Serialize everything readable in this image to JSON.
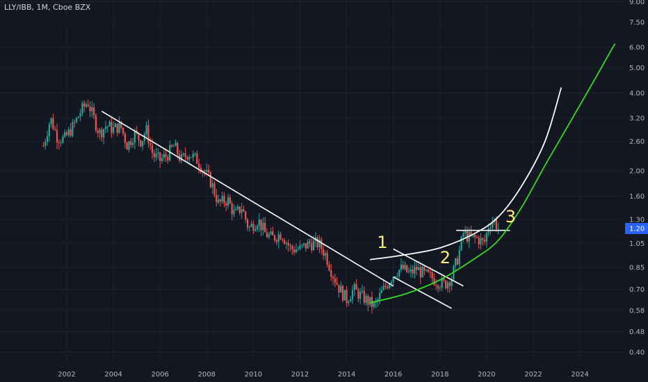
{
  "header": {
    "title": "LLY/IBB, 1M, Cboe BZX"
  },
  "colors": {
    "background": "#131722",
    "grid": "#1e222d",
    "up": "#26a69a",
    "down": "#ef5350",
    "trendline": "#ffffff",
    "green_curve": "#33dd22",
    "label": "#fff176",
    "badge": "#2962ff"
  },
  "chart_data": {
    "type": "candlestick",
    "title": "LLY/IBB, 1M, Cboe BZX",
    "y_scale": "log",
    "x_range": [
      2001.0,
      2026.0
    ],
    "y_range": [
      0.37,
      9.0
    ],
    "x_ticks": [
      "2002",
      "2004",
      "2006",
      "2008",
      "2010",
      "2012",
      "2014",
      "2016",
      "2018",
      "2020",
      "2022",
      "2024"
    ],
    "y_ticks": [
      "9.00",
      "7.50",
      "6.00",
      "5.00",
      "4.00",
      "3.20",
      "2.60",
      "2.00",
      "1.60",
      "1.30",
      "1.05",
      "0.85",
      "0.70",
      "0.58",
      "0.48",
      "0.40"
    ],
    "current_price": "1.20",
    "price_path": [
      [
        2001.0,
        2.5
      ],
      [
        2001.3,
        3.2
      ],
      [
        2001.6,
        2.7
      ],
      [
        2001.9,
        2.65
      ],
      [
        2002.3,
        3.0
      ],
      [
        2002.6,
        3.4
      ],
      [
        2002.9,
        3.7
      ],
      [
        2003.1,
        3.3
      ],
      [
        2003.4,
        2.8
      ],
      [
        2003.7,
        3.0
      ],
      [
        2004.0,
        2.9
      ],
      [
        2004.3,
        3.0
      ],
      [
        2004.6,
        2.5
      ],
      [
        2004.9,
        2.8
      ],
      [
        2005.2,
        2.6
      ],
      [
        2005.4,
        2.9
      ],
      [
        2005.7,
        2.3
      ],
      [
        2006.0,
        2.2
      ],
      [
        2006.3,
        2.3
      ],
      [
        2006.6,
        2.5
      ],
      [
        2006.9,
        2.2
      ],
      [
        2007.2,
        2.35
      ],
      [
        2007.6,
        2.2
      ],
      [
        2007.9,
        2.0
      ],
      [
        2008.2,
        1.8
      ],
      [
        2008.5,
        1.5
      ],
      [
        2008.9,
        1.55
      ],
      [
        2009.2,
        1.35
      ],
      [
        2009.5,
        1.45
      ],
      [
        2009.8,
        1.2
      ],
      [
        2010.2,
        1.3
      ],
      [
        2010.5,
        1.15
      ],
      [
        2010.8,
        1.1
      ],
      [
        2011.2,
        1.15
      ],
      [
        2011.6,
        1.0
      ],
      [
        2012.0,
        1.0
      ],
      [
        2012.4,
        1.05
      ],
      [
        2012.8,
        1.05
      ],
      [
        2013.1,
        0.95
      ],
      [
        2013.4,
        0.8
      ],
      [
        2013.7,
        0.7
      ],
      [
        2014.0,
        0.64
      ],
      [
        2014.3,
        0.7
      ],
      [
        2014.6,
        0.66
      ],
      [
        2014.9,
        0.63
      ],
      [
        2015.2,
        0.6
      ],
      [
        2015.5,
        0.68
      ],
      [
        2015.8,
        0.75
      ],
      [
        2016.1,
        0.82
      ],
      [
        2016.4,
        0.84
      ],
      [
        2016.7,
        0.8
      ],
      [
        2017.0,
        0.84
      ],
      [
        2017.3,
        0.8
      ],
      [
        2017.6,
        0.78
      ],
      [
        2017.9,
        0.75
      ],
      [
        2018.2,
        0.73
      ],
      [
        2018.5,
        0.78
      ],
      [
        2018.8,
        0.95
      ],
      [
        2019.0,
        1.15
      ],
      [
        2019.3,
        1.1
      ],
      [
        2019.6,
        1.1
      ],
      [
        2019.9,
        1.05
      ],
      [
        2020.1,
        1.25
      ],
      [
        2020.3,
        1.3
      ],
      [
        2020.5,
        1.2
      ]
    ],
    "annotations": [
      {
        "text": "1",
        "x": 2015.3,
        "y": 1.01
      },
      {
        "text": "2",
        "x": 2018.0,
        "y": 0.88
      },
      {
        "text": "3",
        "x": 2020.8,
        "y": 1.27
      }
    ],
    "lines": [
      {
        "name": "long-downtrend",
        "points": [
          [
            2003.5,
            3.4
          ],
          [
            2016.0,
            0.72
          ]
        ]
      },
      {
        "name": "channel-line",
        "points": [
          [
            2016.0,
            1.0
          ],
          [
            2019.0,
            0.72
          ]
        ]
      },
      {
        "name": "channel-lower-line",
        "points": [
          [
            2016.0,
            0.78
          ],
          [
            2018.5,
            0.59
          ]
        ]
      },
      {
        "name": "breakout-level",
        "points": [
          [
            2018.7,
            1.18
          ],
          [
            2021.0,
            1.18
          ]
        ]
      }
    ],
    "curves": [
      {
        "name": "white-parabola",
        "points": [
          [
            2015.0,
            0.91
          ],
          [
            2016.5,
            0.95
          ],
          [
            2018.0,
            1.01
          ],
          [
            2019.5,
            1.15
          ],
          [
            2020.5,
            1.33
          ],
          [
            2021.5,
            1.75
          ],
          [
            2022.5,
            2.6
          ],
          [
            2023.2,
            4.2
          ]
        ]
      },
      {
        "name": "green-parabola",
        "points": [
          [
            2015.0,
            0.62
          ],
          [
            2016.5,
            0.67
          ],
          [
            2018.0,
            0.76
          ],
          [
            2019.5,
            0.92
          ],
          [
            2020.5,
            1.08
          ],
          [
            2021.5,
            1.45
          ],
          [
            2022.5,
            2.1
          ],
          [
            2023.5,
            3.0
          ],
          [
            2024.5,
            4.3
          ],
          [
            2025.5,
            6.2
          ]
        ]
      }
    ]
  }
}
